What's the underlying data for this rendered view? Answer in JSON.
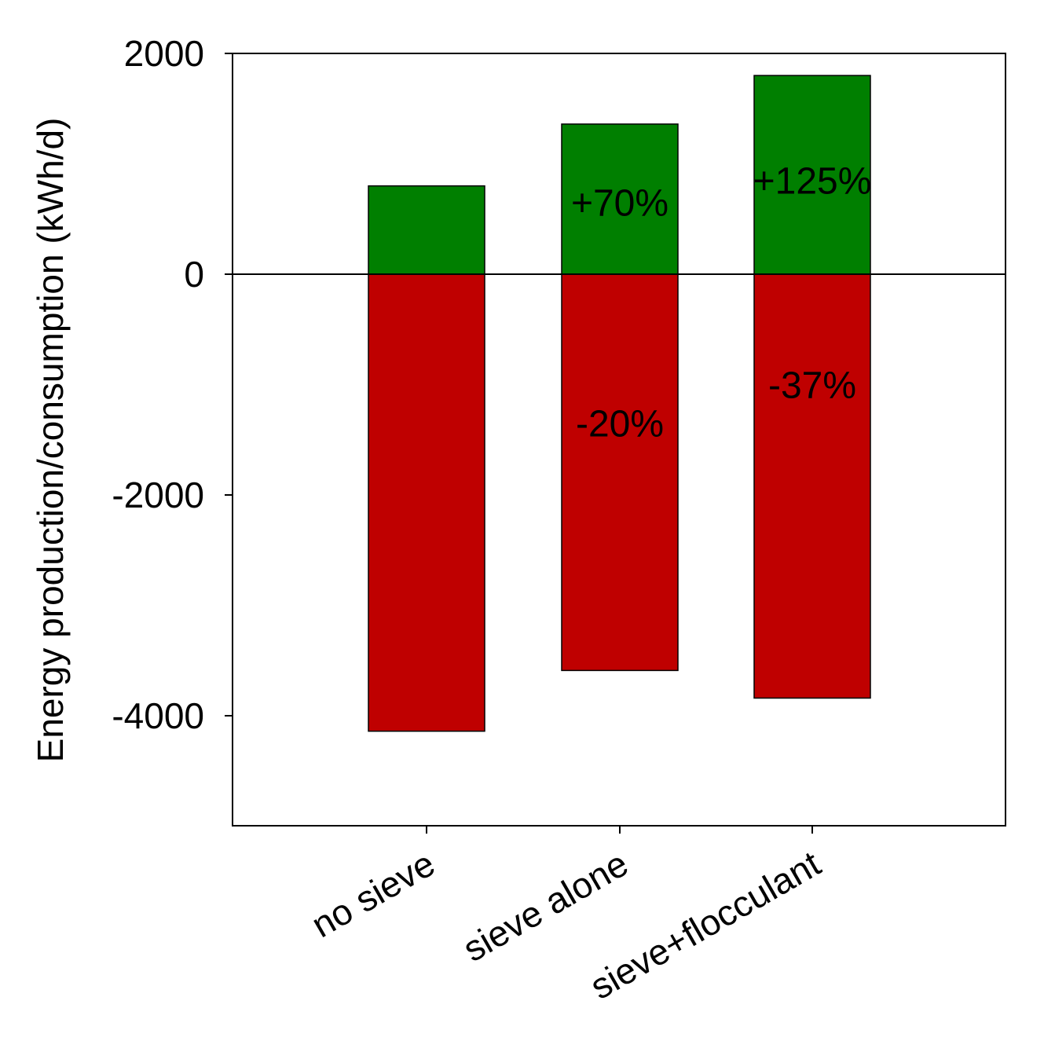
{
  "chart_data": {
    "type": "bar",
    "stacked": true,
    "title": "",
    "xlabel": "",
    "ylabel": "Energy production/consumption (kWh/d)",
    "ylim": [
      -5000,
      2000
    ],
    "yticks": [
      2000,
      0,
      -2000,
      -4000
    ],
    "ytick_labels": [
      "2000",
      "0",
      "-2000",
      "-4000"
    ],
    "categories": [
      "no sieve",
      "sieve alone",
      "sieve+flocculant"
    ],
    "series": [
      {
        "key": "production",
        "color": "#007f00",
        "values": [
          800,
          1360,
          1800
        ]
      },
      {
        "key": "consumption",
        "color": "#bf0000",
        "values": [
          -4140,
          -3590,
          -3840
        ]
      }
    ],
    "annotations": [
      {
        "text": "+70%",
        "category": "sieve alone",
        "y": 650
      },
      {
        "text": "+125%",
        "category": "sieve+flocculant",
        "y": 850
      },
      {
        "text": "-20%",
        "category": "sieve alone",
        "y": -1350
      },
      {
        "text": "-37%",
        "category": "sieve+flocculant",
        "y": -1000
      }
    ],
    "grid": false,
    "legend": "none",
    "zero_line": true
  }
}
